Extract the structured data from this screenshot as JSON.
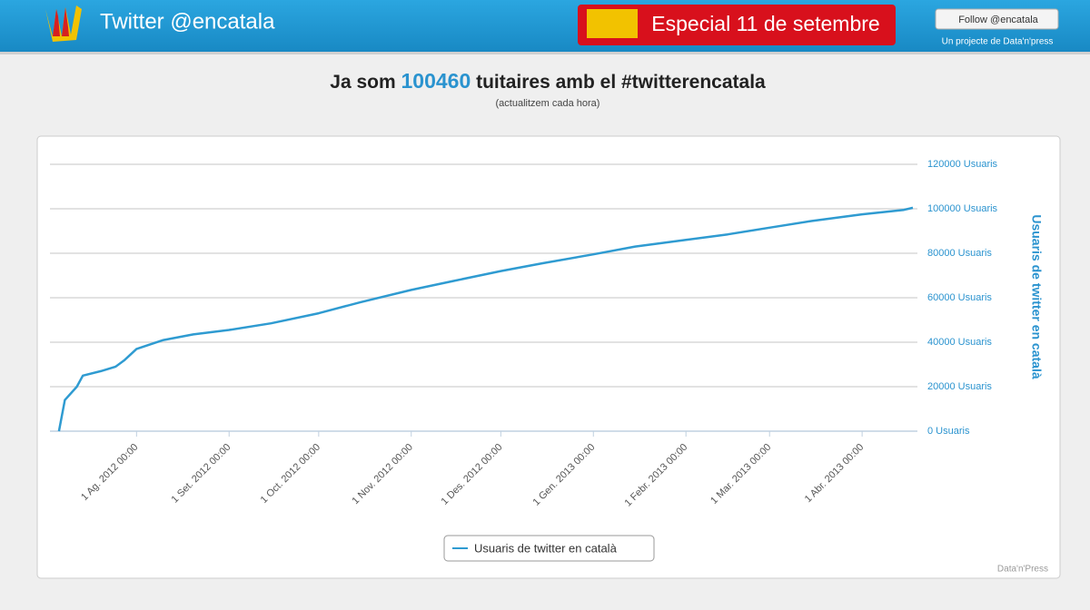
{
  "header": {
    "title": "Twitter @encatala",
    "special": "Especial 11 de setembre",
    "follow": "Follow @encatala",
    "credit": "Un projecte de Data'n'press"
  },
  "headline": {
    "before": "Ja som",
    "count": "100460",
    "after": "tuitaires amb el #twitterencatala",
    "note": "(actualitzem cada hora)"
  },
  "chart_data": {
    "type": "line",
    "x": [
      "2012-07-06",
      "2012-07-08",
      "2012-07-12",
      "2012-07-14",
      "2012-07-20",
      "2012-07-25",
      "2012-07-28",
      "2012-08-01",
      "2012-08-10",
      "2012-08-20",
      "2012-09-01",
      "2012-09-15",
      "2012-10-01",
      "2012-10-15",
      "2012-11-01",
      "2012-11-15",
      "2012-12-01",
      "2012-12-15",
      "2013-01-01",
      "2013-01-15",
      "2013-02-01",
      "2013-02-15",
      "2013-03-01",
      "2013-03-15",
      "2013-04-01",
      "2013-04-15",
      "2013-04-18"
    ],
    "series": [
      {
        "name": "Usuaris de twitter en català",
        "color": "#2f9bd1",
        "values": [
          0,
          14000,
          20000,
          25000,
          27000,
          29000,
          32000,
          37000,
          41000,
          43500,
          45500,
          48500,
          53000,
          58000,
          63500,
          67500,
          72000,
          75500,
          79500,
          83000,
          86000,
          88500,
          91500,
          94500,
          97500,
          99500,
          100460
        ]
      }
    ],
    "xlim": [
      "2012-07-03",
      "2013-04-18"
    ],
    "xticks": [
      {
        "value": "2012-08-01",
        "label": "1 Ag. 2012 00:00"
      },
      {
        "value": "2012-09-01",
        "label": "1 Set. 2012 00:00"
      },
      {
        "value": "2012-10-01",
        "label": "1 Oct. 2012 00:00"
      },
      {
        "value": "2012-11-01",
        "label": "1 Nov. 2012 00:00"
      },
      {
        "value": "2012-12-01",
        "label": "1 Des. 2012 00:00"
      },
      {
        "value": "2013-01-01",
        "label": "1 Gen. 2013 00:00"
      },
      {
        "value": "2013-02-01",
        "label": "1 Febr. 2013 00:00"
      },
      {
        "value": "2013-03-01",
        "label": "1 Mar. 2013 00:00"
      },
      {
        "value": "2013-04-01",
        "label": "1 Abr. 2013 00:00"
      }
    ],
    "ylim": [
      0,
      120000
    ],
    "yticks": [
      {
        "value": 0,
        "label": "0 Usuaris"
      },
      {
        "value": 20000,
        "label": "20000 Usuaris"
      },
      {
        "value": 40000,
        "label": "40000 Usuaris"
      },
      {
        "value": 60000,
        "label": "60000 Usuaris"
      },
      {
        "value": 80000,
        "label": "80000 Usuaris"
      },
      {
        "value": 100000,
        "label": "100000 Usuaris"
      },
      {
        "value": 120000,
        "label": "120000 Usuaris"
      }
    ],
    "y_label": "Usuaris de twitter en català",
    "credit": "Data'n'Press",
    "grid": true
  }
}
